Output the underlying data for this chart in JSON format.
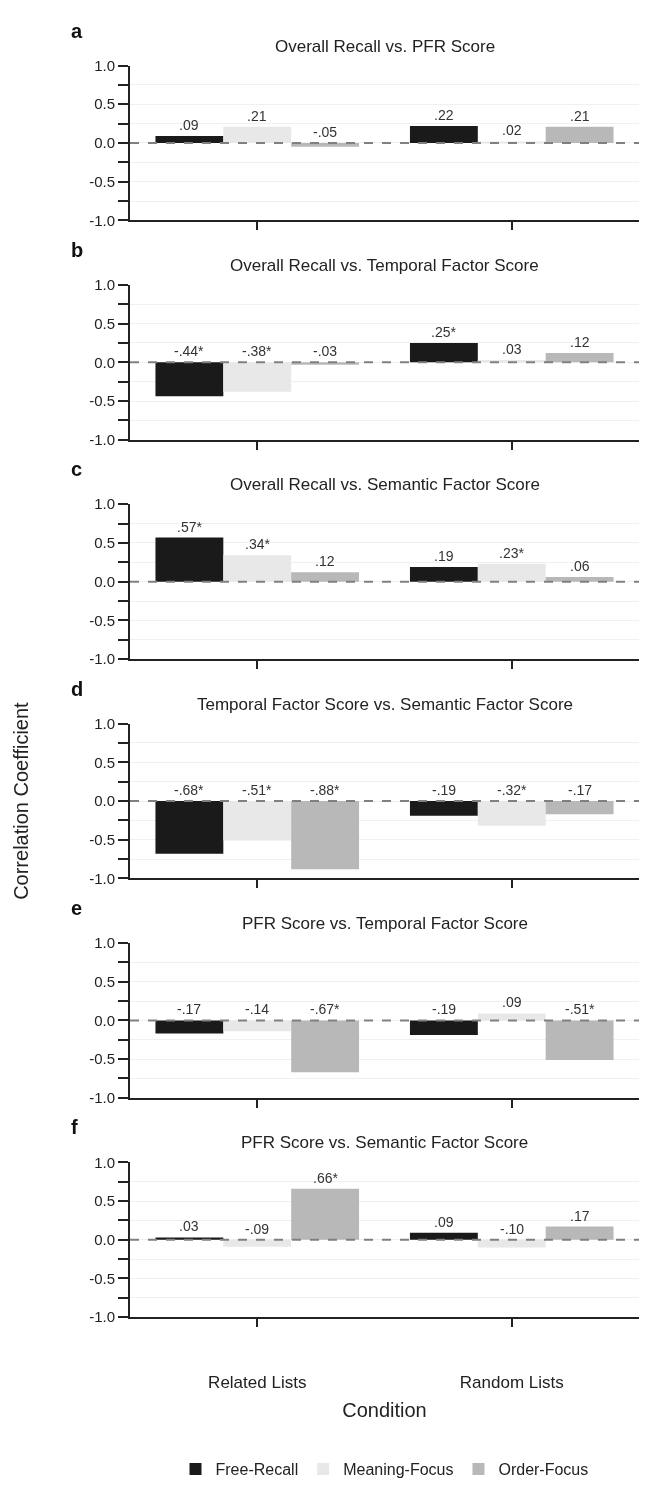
{
  "chart_data": [
    {
      "type": "bar",
      "title": "Overall Recall vs. PFR Score",
      "annotations": [
        "a"
      ],
      "categories": [
        null,
        null
      ],
      "series": [
        {
          "color": "#1a1a1a",
          "values": [
            0.09,
            0.22
          ],
          "value_labels": [
            ".09",
            ".22"
          ]
        },
        {
          "color": "#e8e8e8",
          "values": [
            0.21,
            0.02
          ],
          "value_labels": [
            ".21",
            ".02"
          ]
        },
        {
          "color": "#b8b8b8",
          "values": [
            -0.05,
            0.21
          ],
          "value_labels": [
            "-.05",
            ".21"
          ]
        }
      ],
      "ylim": [
        -1.0,
        1.0
      ],
      "yticks": [
        {
          "value": -1.0,
          "label": "-1.0"
        },
        {
          "value": -0.75,
          "label": null
        },
        {
          "value": -0.5,
          "label": "-0.5"
        },
        {
          "value": -0.25,
          "label": null
        },
        {
          "value": 0,
          "label": "0.0"
        },
        {
          "value": 0.25,
          "label": null
        },
        {
          "value": 0.5,
          "label": "0.5"
        },
        {
          "value": 0.75,
          "label": null
        },
        {
          "value": 1.0,
          "label": "1.0"
        }
      ],
      "ref_lines": [
        {
          "axis": "y",
          "value": 0,
          "color": "#808080",
          "line_style": "dashed"
        }
      ],
      "grid": "y",
      "legend": false,
      "tick_labels": "y"
    },
    {
      "type": "bar",
      "title": "Overall Recall vs. Temporal Factor Score",
      "annotations": [
        "b"
      ],
      "categories": [
        null,
        null
      ],
      "series": [
        {
          "color": "#1a1a1a",
          "values": [
            -0.44,
            0.25
          ],
          "value_labels": [
            "-.44*",
            ".25*"
          ]
        },
        {
          "color": "#e8e8e8",
          "values": [
            -0.38,
            0.03
          ],
          "value_labels": [
            "-.38*",
            ".03"
          ]
        },
        {
          "color": "#b8b8b8",
          "values": [
            -0.03,
            0.12
          ],
          "value_labels": [
            "-.03",
            ".12"
          ]
        }
      ],
      "ylim": [
        -1.0,
        1.0
      ],
      "yticks": [
        {
          "value": -1.0,
          "label": "-1.0"
        },
        {
          "value": -0.75,
          "label": null
        },
        {
          "value": -0.5,
          "label": "-0.5"
        },
        {
          "value": -0.25,
          "label": null
        },
        {
          "value": 0,
          "label": "0.0"
        },
        {
          "value": 0.25,
          "label": null
        },
        {
          "value": 0.5,
          "label": "0.5"
        },
        {
          "value": 0.75,
          "label": null
        },
        {
          "value": 1.0,
          "label": "1.0"
        }
      ],
      "ref_lines": [
        {
          "axis": "y",
          "value": 0,
          "color": "#808080",
          "line_style": "dashed"
        }
      ],
      "grid": "y",
      "legend": false,
      "tick_labels": "y"
    },
    {
      "type": "bar",
      "title": "Overall Recall vs. Semantic Factor Score",
      "annotations": [
        "c"
      ],
      "categories": [
        null,
        null
      ],
      "series": [
        {
          "color": "#1a1a1a",
          "values": [
            0.57,
            0.19
          ],
          "value_labels": [
            ".57*",
            ".19"
          ]
        },
        {
          "color": "#e8e8e8",
          "values": [
            0.34,
            0.23
          ],
          "value_labels": [
            ".34*",
            ".23*"
          ]
        },
        {
          "color": "#b8b8b8",
          "values": [
            0.12,
            0.06
          ],
          "value_labels": [
            ".12",
            ".06"
          ]
        }
      ],
      "ylim": [
        -1.0,
        1.0
      ],
      "yticks": [
        {
          "value": -1.0,
          "label": "-1.0"
        },
        {
          "value": -0.75,
          "label": null
        },
        {
          "value": -0.5,
          "label": "-0.5"
        },
        {
          "value": -0.25,
          "label": null
        },
        {
          "value": 0,
          "label": "0.0"
        },
        {
          "value": 0.25,
          "label": null
        },
        {
          "value": 0.5,
          "label": "0.5"
        },
        {
          "value": 0.75,
          "label": null
        },
        {
          "value": 1.0,
          "label": "1.0"
        }
      ],
      "ref_lines": [
        {
          "axis": "y",
          "value": 0,
          "color": "#808080",
          "line_style": "dashed"
        }
      ],
      "grid": "y",
      "legend": false,
      "tick_labels": "y"
    },
    {
      "type": "bar",
      "title": "Temporal Factor Score vs. Semantic Factor Score",
      "annotations": [
        "d"
      ],
      "ylabel": "Correlation Coefficient",
      "categories": [
        null,
        null
      ],
      "series": [
        {
          "color": "#1a1a1a",
          "values": [
            -0.68,
            -0.19
          ],
          "value_labels": [
            "-.68*",
            "-.19"
          ]
        },
        {
          "color": "#e8e8e8",
          "values": [
            -0.51,
            -0.32
          ],
          "value_labels": [
            "-.51*",
            "-.32*"
          ]
        },
        {
          "color": "#b8b8b8",
          "values": [
            -0.88,
            -0.17
          ],
          "value_labels": [
            "-.88*",
            "-.17"
          ]
        }
      ],
      "ylim": [
        -1.0,
        1.0
      ],
      "yticks": [
        {
          "value": -1.0,
          "label": "-1.0"
        },
        {
          "value": -0.75,
          "label": null
        },
        {
          "value": -0.5,
          "label": "-0.5"
        },
        {
          "value": -0.25,
          "label": null
        },
        {
          "value": 0,
          "label": "0.0"
        },
        {
          "value": 0.25,
          "label": null
        },
        {
          "value": 0.5,
          "label": "0.5"
        },
        {
          "value": 0.75,
          "label": null
        },
        {
          "value": 1.0,
          "label": "1.0"
        }
      ],
      "ref_lines": [
        {
          "axis": "y",
          "value": 0,
          "color": "#808080",
          "line_style": "dashed"
        }
      ],
      "grid": "y",
      "legend": false,
      "tick_labels": "y"
    },
    {
      "type": "bar",
      "title": "PFR Score vs. Temporal Factor Score",
      "annotations": [
        "e"
      ],
      "categories": [
        null,
        null
      ],
      "series": [
        {
          "color": "#1a1a1a",
          "values": [
            -0.17,
            -0.19
          ],
          "value_labels": [
            "-.17",
            "-.19"
          ]
        },
        {
          "color": "#e8e8e8",
          "values": [
            -0.14,
            0.09
          ],
          "value_labels": [
            "-.14",
            ".09"
          ]
        },
        {
          "color": "#b8b8b8",
          "values": [
            -0.67,
            -0.51
          ],
          "value_labels": [
            "-.67*",
            "-.51*"
          ]
        }
      ],
      "ylim": [
        -1.0,
        1.0
      ],
      "yticks": [
        {
          "value": -1.0,
          "label": "-1.0"
        },
        {
          "value": -0.75,
          "label": null
        },
        {
          "value": -0.5,
          "label": "-0.5"
        },
        {
          "value": -0.25,
          "label": null
        },
        {
          "value": 0,
          "label": "0.0"
        },
        {
          "value": 0.25,
          "label": null
        },
        {
          "value": 0.5,
          "label": "0.5"
        },
        {
          "value": 0.75,
          "label": null
        },
        {
          "value": 1.0,
          "label": "1.0"
        }
      ],
      "ref_lines": [
        {
          "axis": "y",
          "value": 0,
          "color": "#808080",
          "line_style": "dashed"
        }
      ],
      "grid": "y",
      "legend": false,
      "tick_labels": "y"
    },
    {
      "type": "bar",
      "title": "PFR Score vs. Semantic Factor Score",
      "annotations": [
        "f"
      ],
      "xlabel": "Condition",
      "categories": [
        "Related Lists",
        "Random Lists"
      ],
      "series": [
        {
          "name": "Free-Recall",
          "color": "#1a1a1a",
          "values": [
            0.03,
            0.09
          ],
          "value_labels": [
            ".03",
            ".09"
          ]
        },
        {
          "name": "Meaning-Focus",
          "color": "#e8e8e8",
          "values": [
            -0.09,
            -0.1
          ],
          "value_labels": [
            "-.09",
            "-.10"
          ]
        },
        {
          "name": "Order-Focus",
          "color": "#b8b8b8",
          "values": [
            0.66,
            0.17
          ],
          "value_labels": [
            ".66*",
            ".17"
          ]
        }
      ],
      "ylim": [
        -1.0,
        1.0
      ],
      "yticks": [
        {
          "value": -1.0,
          "label": "-1.0"
        },
        {
          "value": -0.75,
          "label": null
        },
        {
          "value": -0.5,
          "label": "-0.5"
        },
        {
          "value": -0.25,
          "label": null
        },
        {
          "value": 0,
          "label": "0.0"
        },
        {
          "value": 0.25,
          "label": null
        },
        {
          "value": 0.5,
          "label": "0.5"
        },
        {
          "value": 0.75,
          "label": null
        },
        {
          "value": 1.0,
          "label": "1.0"
        }
      ],
      "ref_lines": [
        {
          "axis": "y",
          "value": 0,
          "color": "#808080",
          "line_style": "dashed"
        }
      ],
      "grid": "y",
      "legend": "bottom"
    }
  ]
}
